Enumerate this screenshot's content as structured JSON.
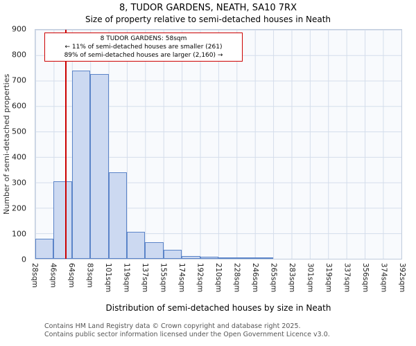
{
  "chart_data": {
    "type": "bar",
    "title": "8, TUDOR GARDENS, NEATH, SA10 7RX",
    "subtitle": "Size of property relative to semi-detached houses in Neath",
    "xlabel": "Distribution of semi-detached houses by size in Neath",
    "ylabel": "Number of semi-detached properties",
    "bin_edge_labels": [
      "28sqm",
      "46sqm",
      "64sqm",
      "83sqm",
      "101sqm",
      "119sqm",
      "137sqm",
      "155sqm",
      "174sqm",
      "192sqm",
      "210sqm",
      "228sqm",
      "246sqm",
      "265sqm",
      "283sqm",
      "301sqm",
      "319sqm",
      "337sqm",
      "356sqm",
      "374sqm",
      "392sqm"
    ],
    "bin_edges_sqm": [
      28,
      46,
      64,
      83,
      101,
      119,
      137,
      155,
      174,
      192,
      210,
      228,
      246,
      265,
      283,
      301,
      319,
      337,
      356,
      374,
      392
    ],
    "values": [
      80,
      305,
      740,
      725,
      340,
      105,
      65,
      35,
      12,
      8,
      5,
      3,
      2,
      0,
      0,
      0,
      0,
      0,
      0,
      0
    ],
    "ylim": [
      0,
      900
    ],
    "ytick_step": 100,
    "grid": true,
    "marker": {
      "value_sqm": 58,
      "color": "#cc0000"
    },
    "bar_fill": "#ccd9f1",
    "bar_border": "#5b84c8"
  },
  "annotation": {
    "line1": "8 TUDOR GARDENS: 58sqm",
    "line2": "← 11% of semi-detached houses are smaller (261)",
    "line3": "89% of semi-detached houses are larger (2,160) →",
    "border_color": "#cc0000"
  },
  "footer": {
    "line1": "Contains HM Land Registry data © Crown copyright and database right 2025.",
    "line2": "Contains public sector information licensed under the Open Government Licence v3.0."
  }
}
